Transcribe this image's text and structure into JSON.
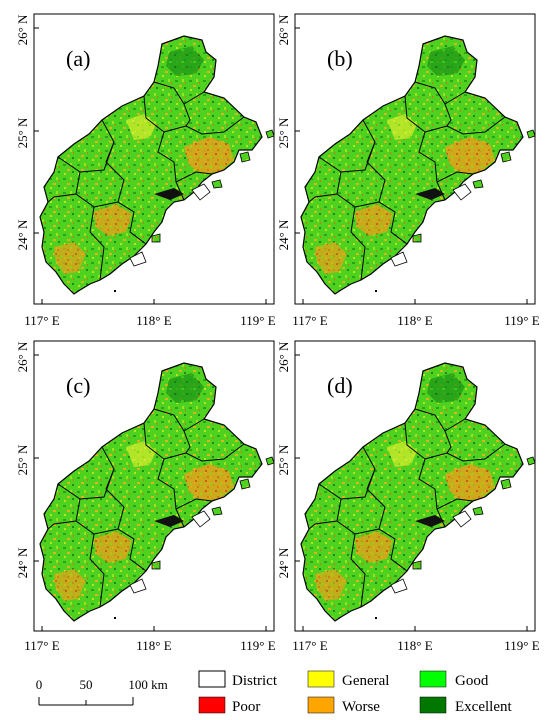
{
  "figure": {
    "panels": [
      {
        "label": "(a)"
      },
      {
        "label": "(b)"
      },
      {
        "label": "(c)"
      },
      {
        "label": "(d)"
      }
    ],
    "lat_ticks": [
      "26° N",
      "25° N",
      "24° N"
    ],
    "lon_ticks": [
      "117° E",
      "118° E",
      "119° E"
    ]
  },
  "legend": {
    "items": [
      {
        "label": "District",
        "color": "#ffffff"
      },
      {
        "label": "General",
        "color": "#ffff00"
      },
      {
        "label": "Good",
        "color": "#00ff00"
      },
      {
        "label": "Poor",
        "color": "#ff0000"
      },
      {
        "label": "Worse",
        "color": "#ffa500"
      },
      {
        "label": "Excellent",
        "color": "#007800"
      }
    ]
  },
  "scale_bar": {
    "labels": [
      "0",
      "50",
      "100 km"
    ]
  }
}
